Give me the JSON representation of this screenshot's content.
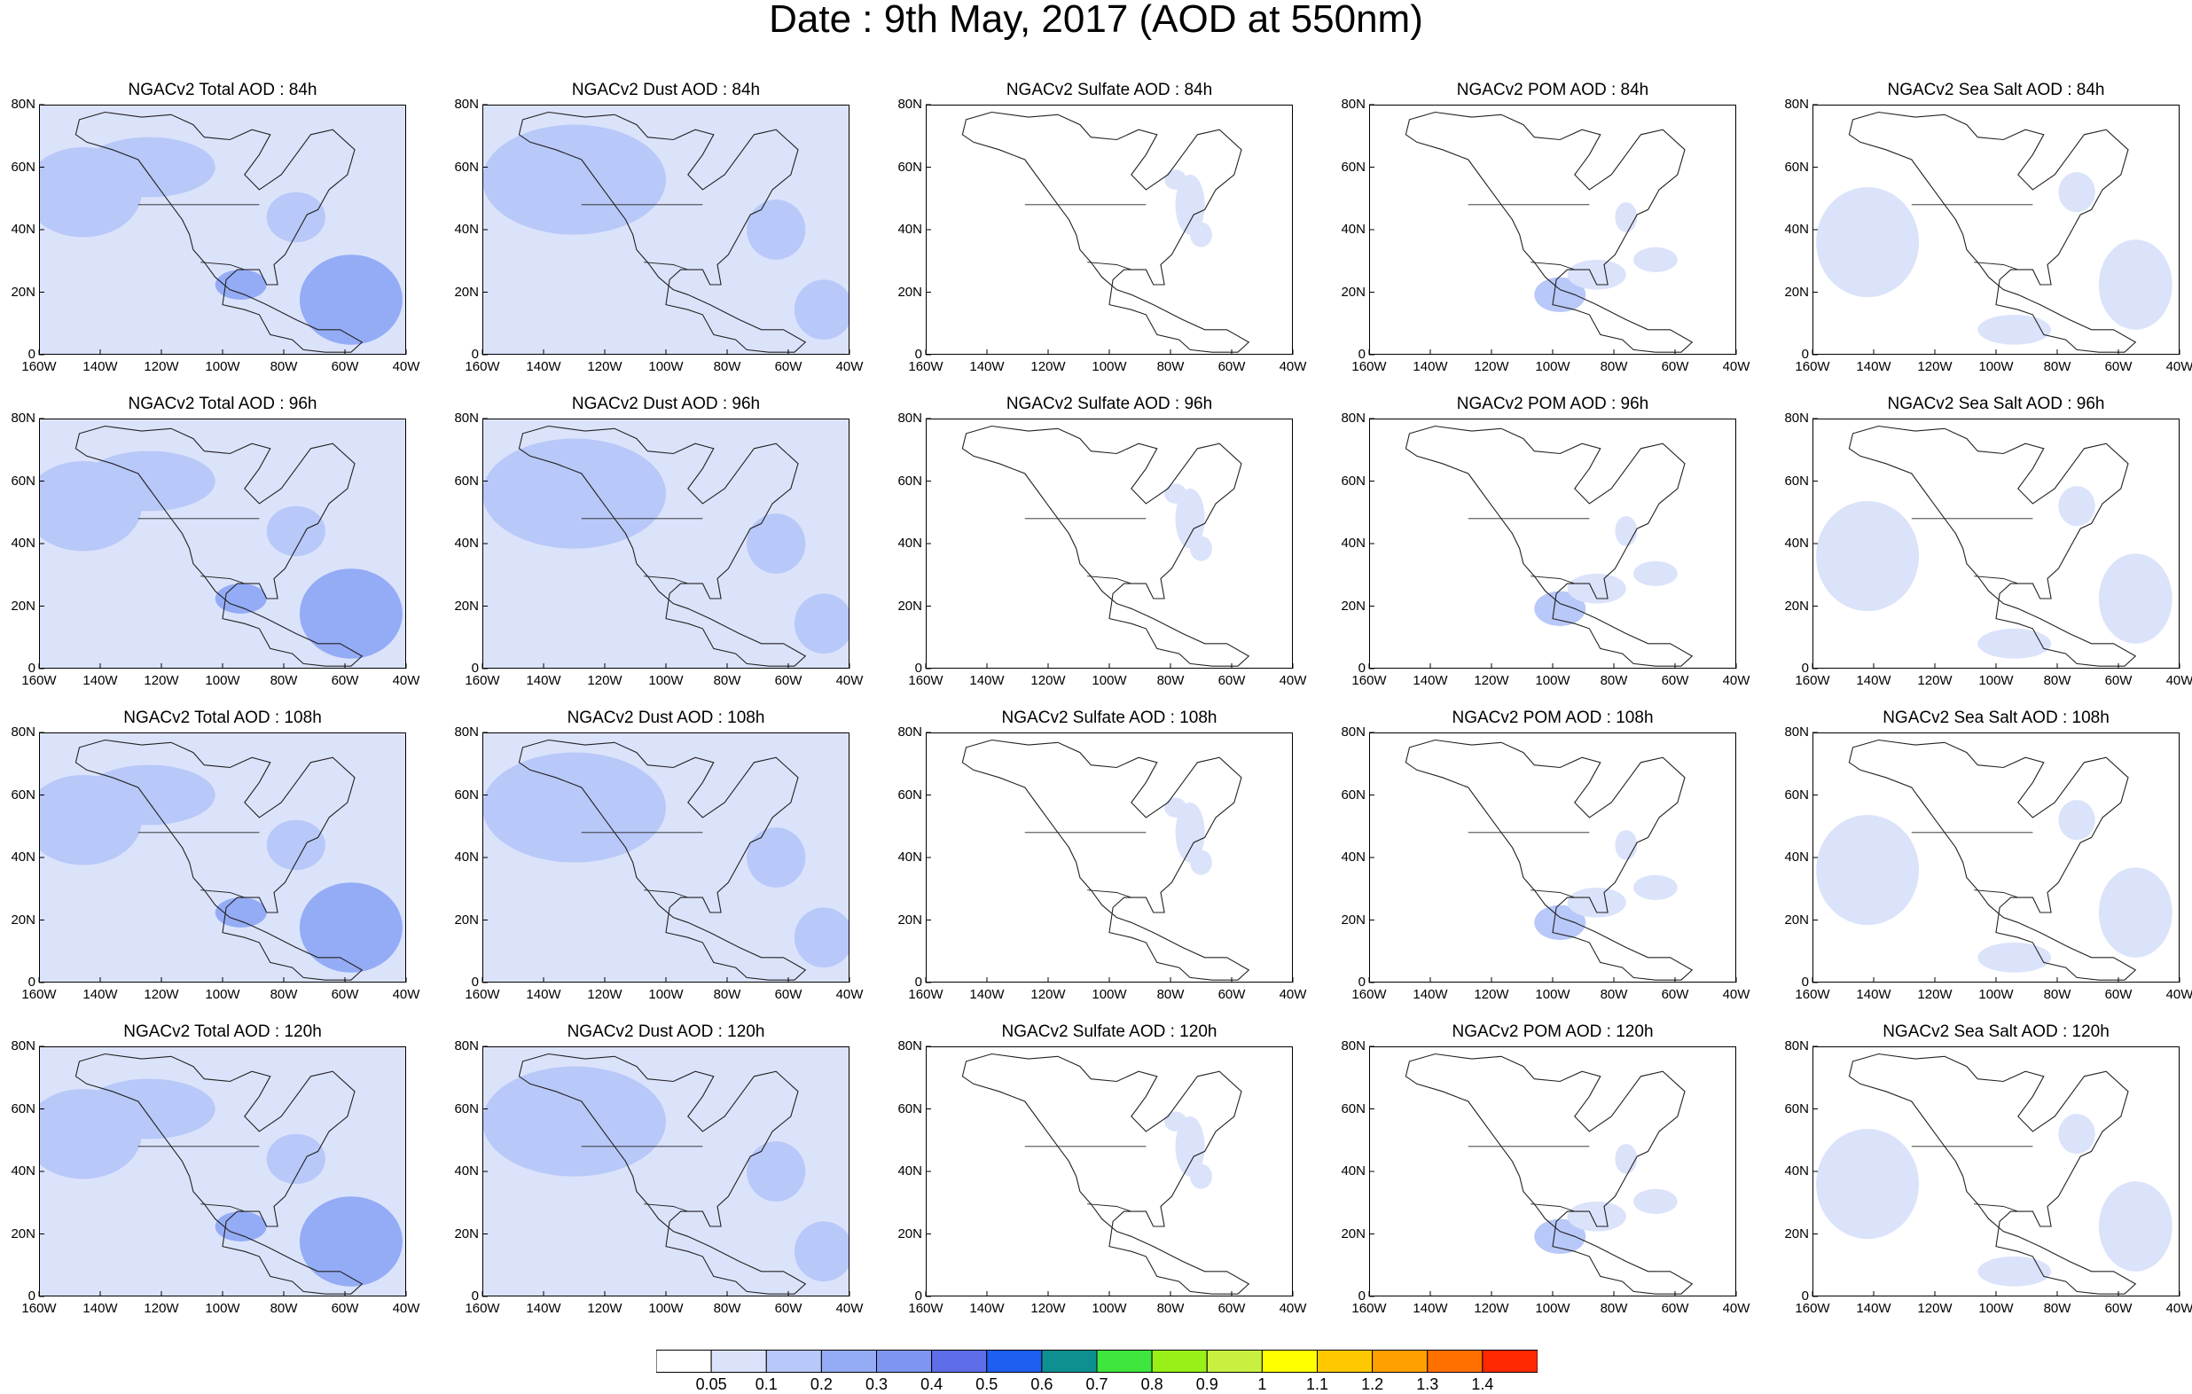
{
  "title": "Date : 9th May, 2017 (AOD at 550nm)",
  "lat_labels": [
    "80N",
    "60N",
    "40N",
    "20N",
    "0"
  ],
  "lon_labels": [
    "160W",
    "140W",
    "120W",
    "100W",
    "80W",
    "60W",
    "40W"
  ],
  "colorbar": {
    "labels": [
      "0.05",
      "0.1",
      "0.2",
      "0.3",
      "0.4",
      "0.5",
      "0.6",
      "0.7",
      "0.8",
      "0.9",
      "1",
      "1.1",
      "1.2",
      "1.3",
      "1.4"
    ],
    "colors": [
      "#ffffff",
      "#dbe3fb",
      "#b8c8f8",
      "#94acf6",
      "#7f95f2",
      "#5e6ee8",
      "#1e5ef0",
      "#0f9090",
      "#3ee63e",
      "#98f018",
      "#c8f040",
      "#ffff00",
      "#ffc800",
      "#ffa000",
      "#ff7000",
      "#ff2800"
    ]
  },
  "panels": [
    {
      "title": "NGACv2 Total AOD : 84h",
      "type": "total"
    },
    {
      "title": "NGACv2 Dust AOD : 84h",
      "type": "dust"
    },
    {
      "title": "NGACv2 Sulfate AOD : 84h",
      "type": "sulfate"
    },
    {
      "title": "NGACv2 POM AOD : 84h",
      "type": "pom"
    },
    {
      "title": "NGACv2 Sea Salt AOD : 84h",
      "type": "seasalt"
    },
    {
      "title": "NGACv2 Total AOD : 96h",
      "type": "total"
    },
    {
      "title": "NGACv2 Dust AOD : 96h",
      "type": "dust"
    },
    {
      "title": "NGACv2 Sulfate AOD : 96h",
      "type": "sulfate"
    },
    {
      "title": "NGACv2 POM AOD : 96h",
      "type": "pom"
    },
    {
      "title": "NGACv2 Sea Salt AOD : 96h",
      "type": "seasalt"
    },
    {
      "title": "NGACv2 Total AOD : 108h",
      "type": "total"
    },
    {
      "title": "NGACv2 Dust AOD : 108h",
      "type": "dust"
    },
    {
      "title": "NGACv2 Sulfate AOD : 108h",
      "type": "sulfate"
    },
    {
      "title": "NGACv2 POM AOD : 108h",
      "type": "pom"
    },
    {
      "title": "NGACv2 Sea Salt AOD : 108h",
      "type": "seasalt"
    },
    {
      "title": "NGACv2 Total AOD : 120h",
      "type": "total"
    },
    {
      "title": "NGACv2 Dust AOD : 120h",
      "type": "dust"
    },
    {
      "title": "NGACv2 Sulfate AOD : 120h",
      "type": "sulfate"
    },
    {
      "title": "NGACv2 POM AOD : 120h",
      "type": "pom"
    },
    {
      "title": "NGACv2 Sea Salt  AOD : 120h",
      "type": "seasalt"
    }
  ]
}
